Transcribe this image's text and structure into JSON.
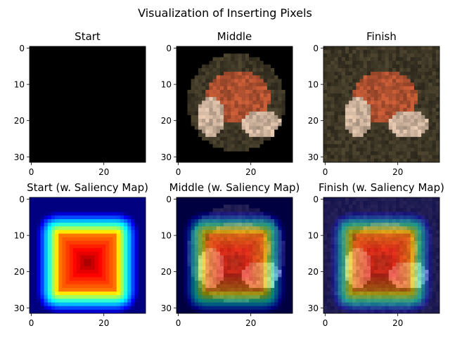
{
  "chart_data": {
    "type": "heatmap",
    "title": "Visualization of Inserting Pixels",
    "panels": [
      {
        "title": "Start",
        "content": "blank",
        "saliency": false
      },
      {
        "title": "Middle",
        "content": "partial",
        "saliency": false
      },
      {
        "title": "Finish",
        "content": "full",
        "saliency": false
      },
      {
        "title": "Start (w. Saliency Map)",
        "content": "blank",
        "saliency": true
      },
      {
        "title": "Middle (w. Saliency Map)",
        "content": "partial",
        "saliency": true
      },
      {
        "title": "Finish (w. Saliency Map)",
        "content": "full",
        "saliency": true
      }
    ],
    "image_size": [
      32,
      32
    ],
    "x_ticks": [
      0,
      20
    ],
    "y_ticks": [
      0,
      10,
      20,
      30
    ],
    "colormap": "jet",
    "grid": false
  }
}
